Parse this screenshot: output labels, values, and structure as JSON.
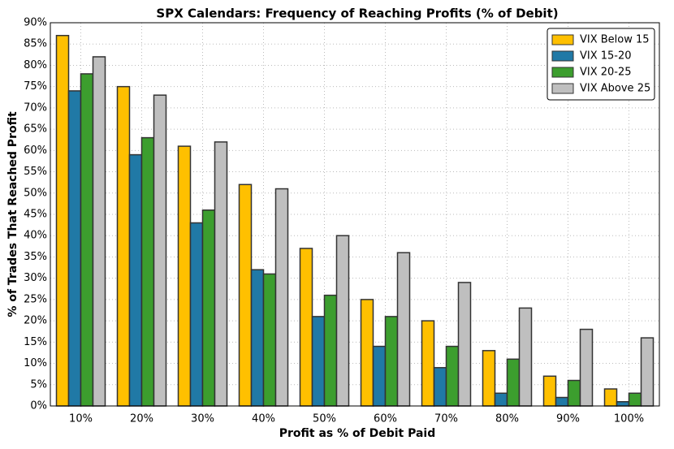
{
  "chart_data": {
    "type": "bar",
    "title": "SPX Calendars: Frequency of Reaching Profits (% of Debit)",
    "x_label": "Profit as % of Debit Paid",
    "y_label": "% of Trades That Reached Profit",
    "categories": [
      "10%",
      "20%",
      "30%",
      "40%",
      "50%",
      "60%",
      "70%",
      "80%",
      "90%",
      "100%"
    ],
    "series": [
      {
        "name": "VIX Below 15",
        "color": "#ffc000",
        "values": [
          87,
          75,
          61,
          52,
          37,
          25,
          20,
          13,
          7,
          4
        ]
      },
      {
        "name": "VIX 15-20",
        "color": "#2079a6",
        "values": [
          74,
          59,
          43,
          32,
          21,
          14,
          9,
          3,
          2,
          1
        ]
      },
      {
        "name": "VIX 20-25",
        "color": "#3c9e2e",
        "values": [
          78,
          63,
          46,
          31,
          26,
          21,
          14,
          11,
          6,
          3
        ]
      },
      {
        "name": "VIX Above 25",
        "color": "#bfbfbf",
        "values": [
          82,
          73,
          62,
          51,
          40,
          36,
          29,
          23,
          18,
          16
        ]
      }
    ],
    "ylim": [
      0,
      90
    ],
    "yticks": [
      {
        "value": 0,
        "label": "0%"
      },
      {
        "value": 5,
        "label": "5%"
      },
      {
        "value": 10,
        "label": "10%"
      },
      {
        "value": 15,
        "label": "15%"
      },
      {
        "value": 20,
        "label": "20%"
      },
      {
        "value": 25,
        "label": "25%"
      },
      {
        "value": 30,
        "label": "30%"
      },
      {
        "value": 35,
        "label": "35%"
      },
      {
        "value": 40,
        "label": "40%"
      },
      {
        "value": 45,
        "label": "45%"
      },
      {
        "value": 50,
        "label": "50%"
      },
      {
        "value": 55,
        "label": "55%"
      },
      {
        "value": 60,
        "label": "60%"
      },
      {
        "value": 65,
        "label": "65%"
      },
      {
        "value": 70,
        "label": "70%"
      },
      {
        "value": 75,
        "label": "75%"
      },
      {
        "value": 80,
        "label": "80%"
      },
      {
        "value": 85,
        "label": "85%"
      },
      {
        "value": 90,
        "label": "90%"
      }
    ],
    "grid": true,
    "legend": "upper right"
  }
}
